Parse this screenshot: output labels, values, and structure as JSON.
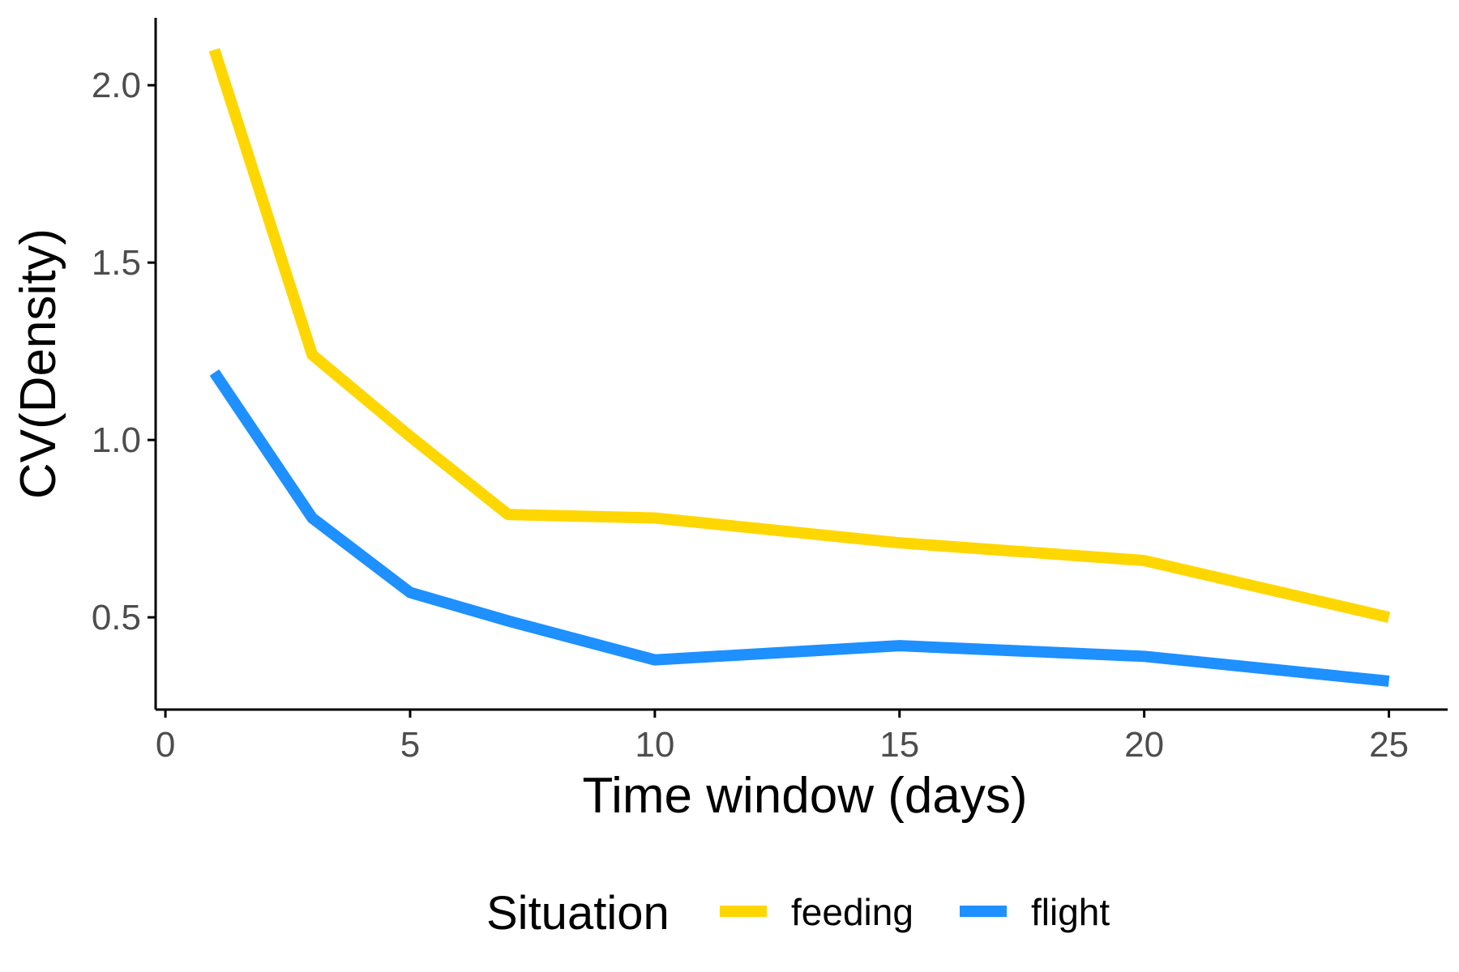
{
  "chart_data": {
    "type": "line",
    "xlabel": "Time window (days)",
    "ylabel": "CV(Density)",
    "xlim": [
      -0.2,
      26.2
    ],
    "ylim": [
      0.24,
      2.19
    ],
    "x_ticks": [
      0,
      5,
      10,
      15,
      20,
      25
    ],
    "x_tick_labels": [
      "0",
      "5",
      "10",
      "15",
      "20",
      "25"
    ],
    "y_ticks": [
      0.5,
      1.0,
      1.5,
      2.0
    ],
    "y_tick_labels": [
      "0.5",
      "1.0",
      "1.5",
      "2.0"
    ],
    "grid": false,
    "legend": {
      "title": "Situation",
      "position": "bottom"
    },
    "series": [
      {
        "name": "feeding",
        "color": "#FFD700",
        "x": [
          1,
          3,
          5,
          7,
          10,
          15,
          20,
          25
        ],
        "y": [
          2.1,
          1.24,
          1.01,
          0.79,
          0.78,
          0.71,
          0.66,
          0.5
        ]
      },
      {
        "name": "flight",
        "color": "#1E90FF",
        "x": [
          1,
          3,
          5,
          7,
          10,
          15,
          20,
          25
        ],
        "y": [
          1.19,
          0.78,
          0.57,
          0.49,
          0.38,
          0.42,
          0.39,
          0.32
        ]
      }
    ]
  }
}
